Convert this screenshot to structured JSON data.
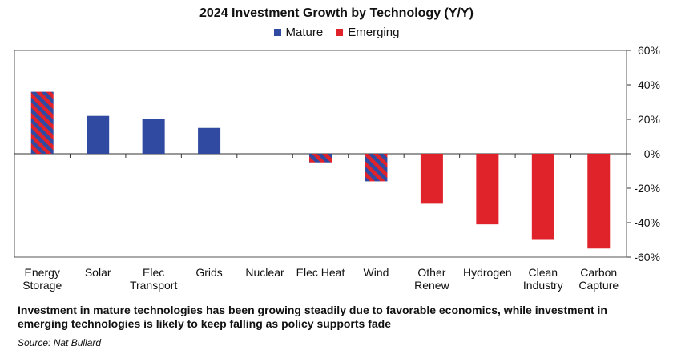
{
  "chart_data": {
    "type": "bar",
    "title": "2024 Investment Growth by Technology (Y/Y)",
    "categories": [
      [
        "Energy",
        "Storage"
      ],
      [
        "Solar"
      ],
      [
        "Elec",
        "Transport"
      ],
      [
        "Grids"
      ],
      [
        "Nuclear"
      ],
      [
        "Elec Heat"
      ],
      [
        "Wind"
      ],
      [
        "Other",
        "Renew"
      ],
      [
        "Hydrogen"
      ],
      [
        "Clean",
        "Industry"
      ],
      [
        "Carbon",
        "Capture"
      ]
    ],
    "values": [
      36,
      22,
      20,
      15,
      0,
      -5,
      -16,
      -29,
      -41,
      -50,
      -55
    ],
    "series_type": [
      "mixed",
      "mature",
      "mature",
      "mature",
      "mature",
      "mixed",
      "mixed",
      "emerging",
      "emerging",
      "emerging",
      "emerging"
    ],
    "legend": [
      {
        "name": "Mature",
        "color": "#2f4aa0"
      },
      {
        "name": "Emerging",
        "color": "#e0222b"
      }
    ],
    "ylim": [
      -60,
      60
    ],
    "yticks": [
      60,
      40,
      20,
      0,
      -20,
      -40,
      -60
    ],
    "ytick_labels": [
      "60%",
      "40%",
      "20%",
      "0%",
      "-20%",
      "-40%",
      "-60%"
    ],
    "xlabel": "",
    "ylabel": ""
  },
  "caption": "Investment in mature technologies has been growing steadily due to favorable economics, while investment in emerging technologies is likely to keep falling as policy supports fade",
  "source": "Source: Nat Bullard"
}
